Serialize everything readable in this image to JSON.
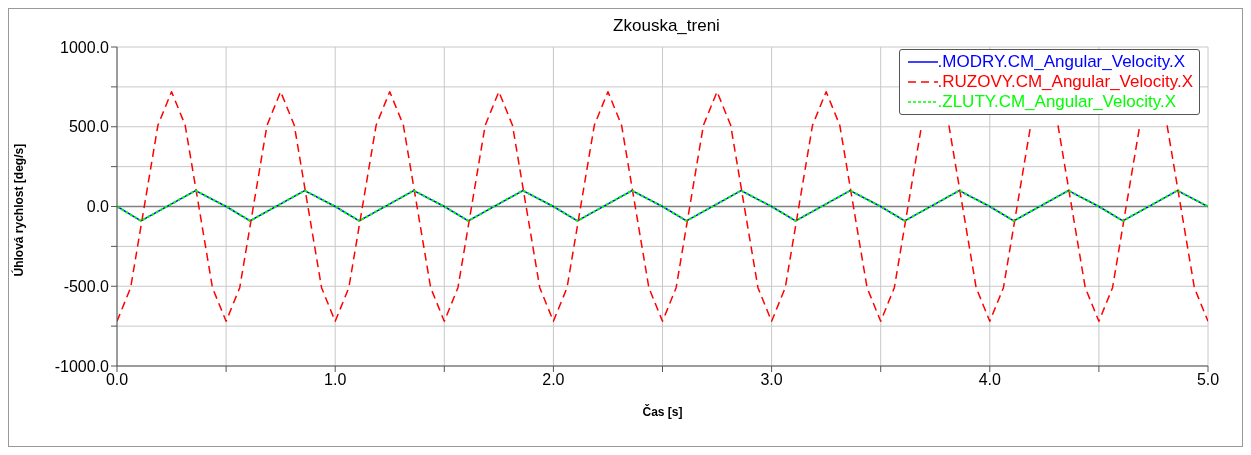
{
  "chart_data": {
    "type": "line",
    "title": "Zkouska_treni",
    "xlabel": "Čas [s]",
    "ylabel": "Úhlová rychlost [deg/s]",
    "xlim": [
      0,
      5
    ],
    "xticks": [
      {
        "value": 0,
        "label": "0.0"
      },
      {
        "value": 0.5,
        "label": null
      },
      {
        "value": 1,
        "label": "1.0"
      },
      {
        "value": 1.5,
        "label": null
      },
      {
        "value": 2,
        "label": "2.0"
      },
      {
        "value": 2.5,
        "label": null
      },
      {
        "value": 3,
        "label": "3.0"
      },
      {
        "value": 3.5,
        "label": null
      },
      {
        "value": 4,
        "label": "4.0"
      },
      {
        "value": 4.5,
        "label": null
      },
      {
        "value": 5,
        "label": "5.0"
      }
    ],
    "ylim": [
      -1000,
      1000
    ],
    "yticks": [
      {
        "value": -1000,
        "label": "-1000.0"
      },
      {
        "value": -750,
        "label": null
      },
      {
        "value": -500,
        "label": "-500.0"
      },
      {
        "value": -250,
        "label": null
      },
      {
        "value": 0,
        "label": "0.0"
      },
      {
        "value": 250,
        "label": null
      },
      {
        "value": 500,
        "label": "500.0"
      },
      {
        "value": 750,
        "label": null
      },
      {
        "value": 1000,
        "label": "1000.0"
      }
    ],
    "grid": true,
    "legend": "top right",
    "marker": "none",
    "ref_lines": [
      {
        "axis": "y",
        "value": 0,
        "color": "#808080"
      }
    ],
    "series": [
      {
        "name": ".MODRY.CM_Angular_Velocity.X",
        "color": "#0000ff",
        "line_style": "solid",
        "x": [
          0,
          0.11,
          0.36,
          0.5,
          0.61,
          0.86,
          1,
          1.11,
          1.36,
          1.5,
          1.61,
          1.86,
          2,
          2.11,
          2.36,
          2.5,
          2.61,
          2.86,
          3,
          3.11,
          3.36,
          3.5,
          3.61,
          3.86,
          4,
          4.11,
          4.36,
          4.5,
          4.61,
          4.86,
          5
        ],
        "values": [
          0,
          -90,
          100,
          0,
          -90,
          100,
          0,
          -90,
          100,
          0,
          -90,
          100,
          0,
          -90,
          100,
          0,
          -90,
          100,
          0,
          -90,
          100,
          0,
          -90,
          100,
          0,
          -90,
          100,
          0,
          -90,
          100,
          0
        ]
      },
      {
        "name": ".RUZOVY.CM_Angular_Velocity.X",
        "color": "#ff0000",
        "line_style": "dashed",
        "x": [
          0,
          0.0625,
          0.125,
          0.1875,
          0.25,
          0.3125,
          0.375,
          0.4375,
          0.5,
          0.5625,
          0.625,
          0.6875,
          0.75,
          0.8125,
          0.875,
          0.9375,
          1,
          1.0625,
          1.125,
          1.1875,
          1.25,
          1.3125,
          1.375,
          1.4375,
          1.5,
          1.5625,
          1.625,
          1.6875,
          1.75,
          1.8125,
          1.875,
          1.9375,
          2,
          2.0625,
          2.125,
          2.1875,
          2.25,
          2.3125,
          2.375,
          2.4375,
          2.5,
          2.5625,
          2.625,
          2.6875,
          2.75,
          2.8125,
          2.875,
          2.9375,
          3,
          3.0625,
          3.125,
          3.1875,
          3.25,
          3.3125,
          3.375,
          3.4375,
          3.5,
          3.5625,
          3.625,
          3.6875,
          3.75,
          3.8125,
          3.875,
          3.9375,
          4,
          4.0625,
          4.125,
          4.1875,
          4.25,
          4.3125,
          4.375,
          4.4375,
          4.5,
          4.5625,
          4.625,
          4.6875,
          4.75,
          4.8125,
          4.875,
          4.9375,
          5
        ],
        "values": [
          -720,
          -509,
          0,
          509,
          720,
          509,
          0,
          -509,
          -720,
          -509,
          0,
          509,
          720,
          509,
          0,
          -509,
          -720,
          -509,
          0,
          509,
          720,
          509,
          0,
          -509,
          -720,
          -509,
          0,
          509,
          720,
          509,
          0,
          -509,
          -720,
          -509,
          0,
          509,
          720,
          509,
          0,
          -509,
          -720,
          -509,
          0,
          509,
          720,
          509,
          0,
          -509,
          -720,
          -509,
          0,
          509,
          720,
          509,
          0,
          -509,
          -720,
          -509,
          0,
          509,
          null,
          509,
          0,
          -509,
          -720,
          -509,
          0,
          509,
          null,
          509,
          0,
          -509,
          -720,
          -509,
          0,
          509,
          null,
          509,
          0,
          -509,
          -720
        ]
      },
      {
        "name": ".ZLUTY.CM_Angular_Velocity.X",
        "color": "#00ff00",
        "line_style": "dotted",
        "x": [
          0,
          0.11,
          0.36,
          0.5,
          0.61,
          0.86,
          1,
          1.11,
          1.36,
          1.5,
          1.61,
          1.86,
          2,
          2.11,
          2.36,
          2.5,
          2.61,
          2.86,
          3,
          3.11,
          3.36,
          3.5,
          3.61,
          3.86,
          4,
          4.11,
          4.36,
          4.5,
          4.61,
          4.86,
          5
        ],
        "values": [
          0,
          -90,
          100,
          0,
          -90,
          100,
          0,
          -90,
          100,
          0,
          -90,
          100,
          0,
          -90,
          100,
          0,
          -90,
          100,
          0,
          -90,
          100,
          0,
          -90,
          100,
          0,
          -90,
          100,
          0,
          -90,
          100,
          0
        ]
      }
    ]
  }
}
